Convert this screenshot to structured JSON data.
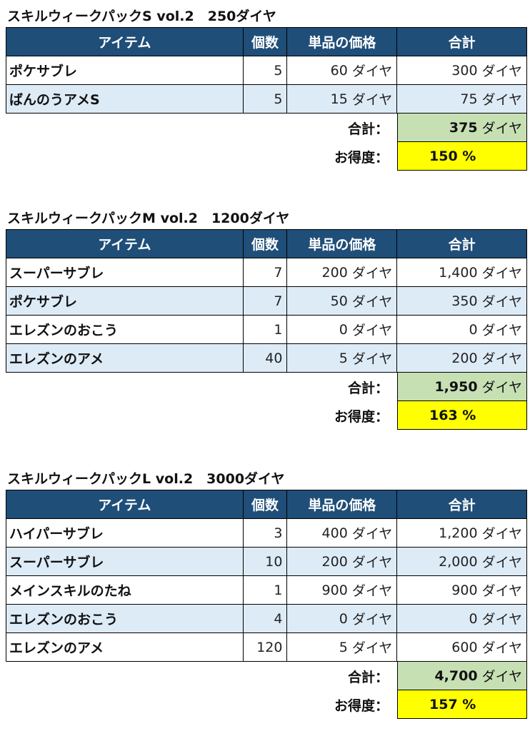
{
  "headers": {
    "item": "アイテム",
    "qty": "個数",
    "unit_price": "単品の価格",
    "total": "合計"
  },
  "unit": "ダイヤ",
  "labels": {
    "sum": "合計：",
    "rate": "お得度："
  },
  "packs": [
    {
      "title": "スキルウィークパックS vol.2　250ダイヤ",
      "rows": [
        {
          "item": "ポケサブレ",
          "qty": "5",
          "price": "60",
          "total": "300"
        },
        {
          "item": "ばんのうアメS",
          "qty": "5",
          "price": "15",
          "total": "75"
        }
      ],
      "sum": "375",
      "rate": "150 %"
    },
    {
      "title": "スキルウィークパックM vol.2　1200ダイヤ",
      "rows": [
        {
          "item": "スーパーサブレ",
          "qty": "7",
          "price": "200",
          "total": "1,400"
        },
        {
          "item": "ポケサブレ",
          "qty": "7",
          "price": "50",
          "total": "350"
        },
        {
          "item": "エレズンのおこう",
          "qty": "1",
          "price": "0",
          "total": "0"
        },
        {
          "item": "エレズンのアメ",
          "qty": "40",
          "price": "5",
          "total": "200"
        }
      ],
      "sum": "1,950",
      "rate": "163 %"
    },
    {
      "title": "スキルウィークパックL vol.2　3000ダイヤ",
      "rows": [
        {
          "item": "ハイパーサブレ",
          "qty": "3",
          "price": "400",
          "total": "1,200"
        },
        {
          "item": "スーパーサブレ",
          "qty": "10",
          "price": "200",
          "total": "2,000"
        },
        {
          "item": "メインスキルのたね",
          "qty": "1",
          "price": "900",
          "total": "900"
        },
        {
          "item": "エレズンのおこう",
          "qty": "4",
          "price": "0",
          "total": "0"
        },
        {
          "item": "エレズンのアメ",
          "qty": "120",
          "price": "5",
          "total": "600"
        }
      ],
      "sum": "4,700",
      "rate": "157 %"
    }
  ]
}
